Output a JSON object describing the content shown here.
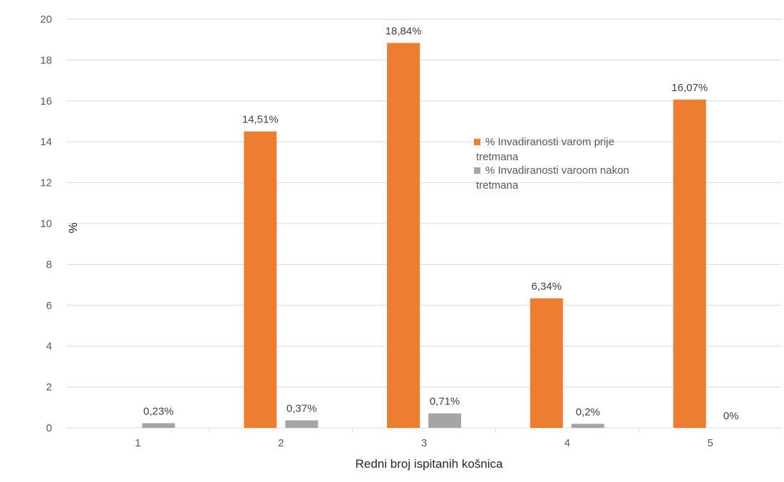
{
  "chart_data": {
    "type": "bar",
    "title": "",
    "xlabel": "Redni broj ispitanih košnica",
    "ylabel": "%",
    "ylim": [
      0,
      20
    ],
    "yticks": [
      0,
      2,
      4,
      6,
      8,
      10,
      12,
      14,
      16,
      18,
      20
    ],
    "grid": true,
    "legend_position": "center-right",
    "categories": [
      "1",
      "2",
      "3",
      "4",
      "5"
    ],
    "series": [
      {
        "name": "% Invadiranosti varom prije tretmana",
        "color": "#ed7d31",
        "values": [
          0,
          14.51,
          18.84,
          6.34,
          16.07
        ],
        "data_labels": [
          "",
          "14,51%",
          "18,84%",
          "6,34%",
          "16,07%"
        ]
      },
      {
        "name": "% Invadiranosti varoom nakon tretmana",
        "color": "#a5a5a5",
        "values": [
          0.23,
          0.37,
          0.71,
          0.2,
          0
        ],
        "data_labels": [
          "0,23%",
          "0,37%",
          "0,71%",
          "0,2%",
          "0%"
        ]
      }
    ]
  }
}
